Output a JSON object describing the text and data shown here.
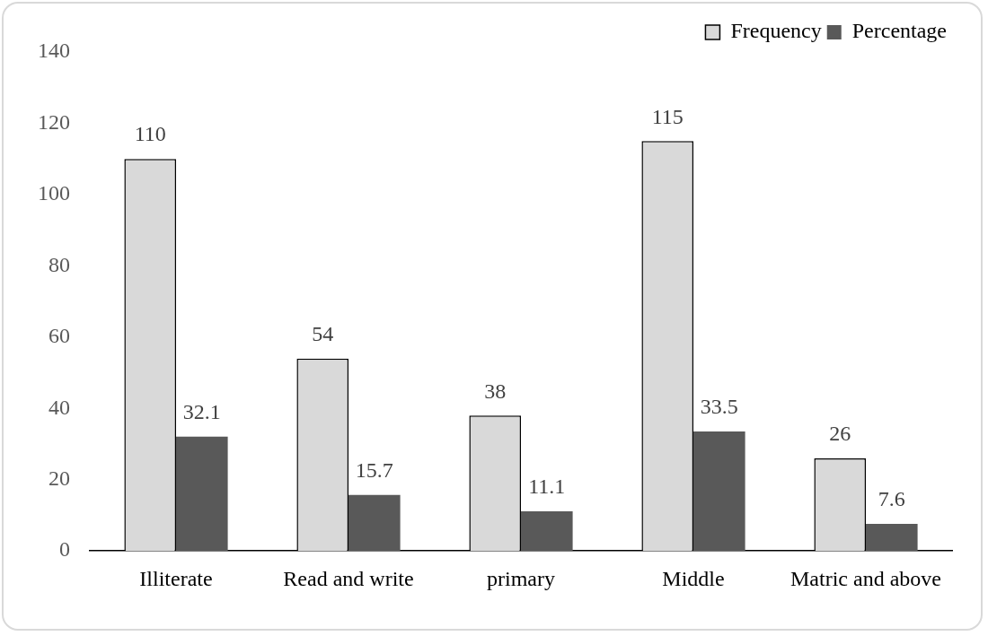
{
  "chart_data": {
    "type": "bar",
    "categories": [
      "Illiterate",
      "Read and write",
      "primary",
      "Middle",
      "Matric and above"
    ],
    "series": [
      {
        "name": "Frequency",
        "color": "#d9d9d9",
        "values": [
          110,
          54,
          38,
          115,
          26
        ]
      },
      {
        "name": "Percentage",
        "color": "#595959",
        "values": [
          32.1,
          15.7,
          11.1,
          33.5,
          7.6
        ]
      }
    ],
    "ylim": [
      0,
      140
    ],
    "yticks": [
      0,
      20,
      40,
      60,
      80,
      100,
      120,
      140
    ],
    "grid": false,
    "legend": "top right",
    "data_labels": true
  }
}
